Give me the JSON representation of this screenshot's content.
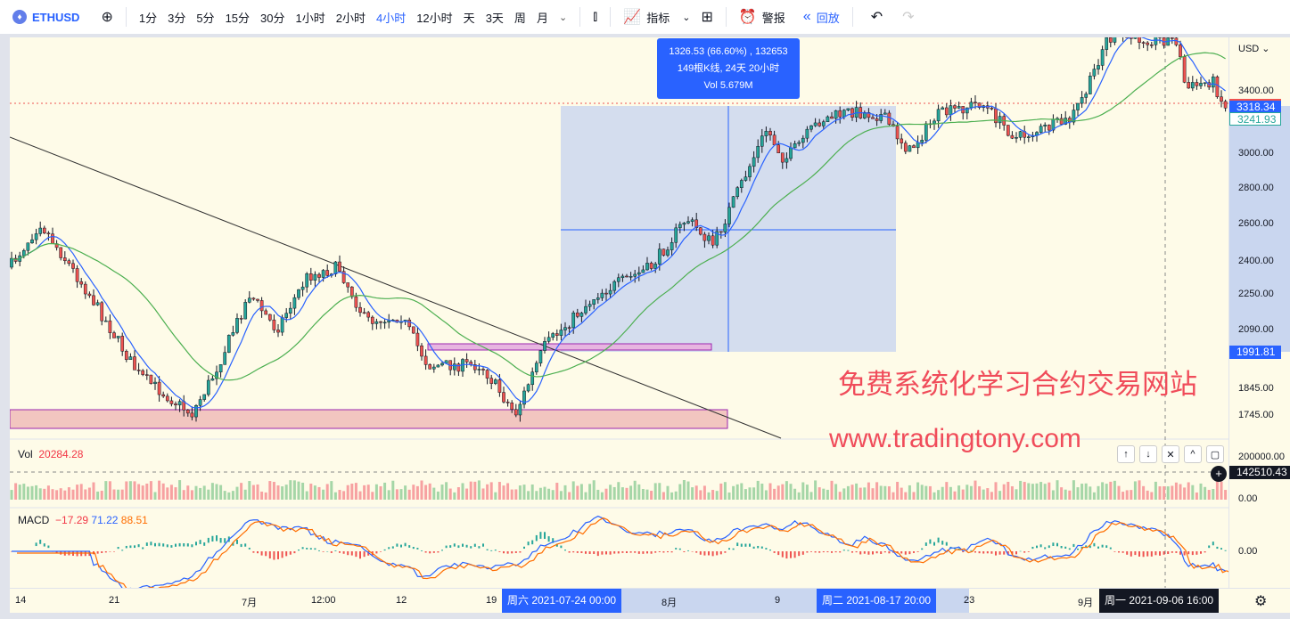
{
  "toolbar": {
    "symbol": "ETHUSD",
    "timeframes": [
      "1分",
      "3分",
      "5分",
      "15分",
      "30分",
      "1小时",
      "2小时",
      "4小时",
      "12小时",
      "天",
      "3天",
      "周",
      "月"
    ],
    "active_timeframe": "4小时",
    "indicators_label": "指标",
    "alert_label": "警报",
    "replay_label": "回放"
  },
  "price_axis": {
    "currency": "USD",
    "labels": [
      "3400.00",
      "3000.00",
      "2800.00",
      "2600.00",
      "2400.00",
      "2250.00",
      "2090.00",
      "1845.00",
      "1745.00"
    ],
    "tag_high": "3318.34",
    "tag_last": "3241.93",
    "tag_low": "1991.81",
    "vol_labels": [
      "200000.00",
      "0.00"
    ],
    "vol_tag": "142510.43",
    "macd_label": "0.00"
  },
  "measure_box": {
    "line1": "1326.53 (66.60%) , 132653",
    "line2": "149根K线, 24天 20小时",
    "line3": "Vol 5.679M"
  },
  "watermark": {
    "line1": "免费系统化学习合约交易网站",
    "line2": "www.tradingtony.com"
  },
  "volume": {
    "label": "Vol",
    "value": "20284.28"
  },
  "macd": {
    "label": "MACD",
    "hist": "−17.29",
    "macd": "71.22",
    "signal": "88.51"
  },
  "time_axis": {
    "labels": [
      "14",
      "21",
      "7月",
      "12:00",
      "12",
      "19",
      "8月",
      "9",
      "23",
      "9月"
    ],
    "tag_start": "周六 2021-07-24   00:00",
    "tag_end": "周二 2021-08-17   20:00",
    "tag_cursor": "周一 2021-09-06   16:00"
  },
  "colors": {
    "accent": "#2962ff",
    "up": "#26a69a",
    "down": "#ef5350",
    "ma_fast": "#2962ff",
    "ma_slow": "#4caf50",
    "macd_signal": "#ff6d00",
    "background": "#fefbe8"
  }
}
